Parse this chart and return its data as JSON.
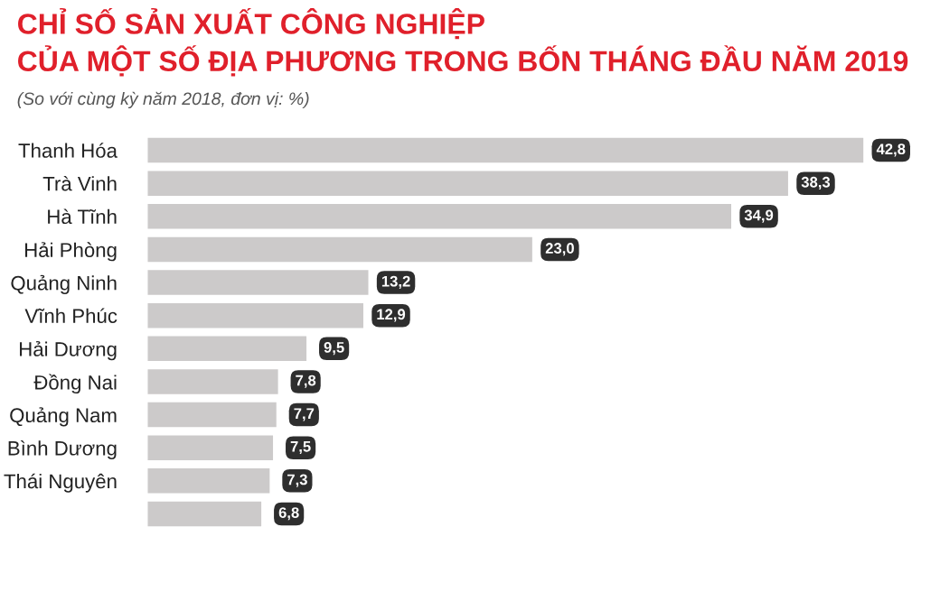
{
  "chart_data": {
    "type": "bar",
    "orientation": "horizontal",
    "title": "CHỈ SỐ SẢN XUẤT CÔNG NGHIỆP\nCỦA MỘT SỐ ĐỊA PHƯƠNG TRONG BỐN THÁNG ĐẦU NĂM 2019",
    "subtitle": "(So với cùng kỳ năm 2018, đơn vị: %)",
    "categories": [
      "Thanh Hóa",
      "Trà Vinh",
      "Hà Tĩnh",
      "Hải Phòng",
      "Quảng Ninh",
      "Vĩnh Phúc",
      "Hải Dương",
      "Đồng Nai",
      "Quảng Nam",
      "Bình Dương",
      "Thái Nguyên",
      null
    ],
    "values": [
      42.8,
      38.3,
      34.9,
      23.0,
      13.2,
      12.9,
      9.5,
      7.8,
      7.7,
      7.5,
      7.3,
      6.8
    ],
    "value_labels": [
      "42,8",
      "38,3",
      "34,9",
      "23,0",
      "13,2",
      "12,9",
      "9,5",
      "7,8",
      "7,7",
      "7,5",
      "7,3",
      "6,8"
    ],
    "color": "#cccaca",
    "grid": false,
    "legend": false,
    "tick_labels": "y"
  }
}
